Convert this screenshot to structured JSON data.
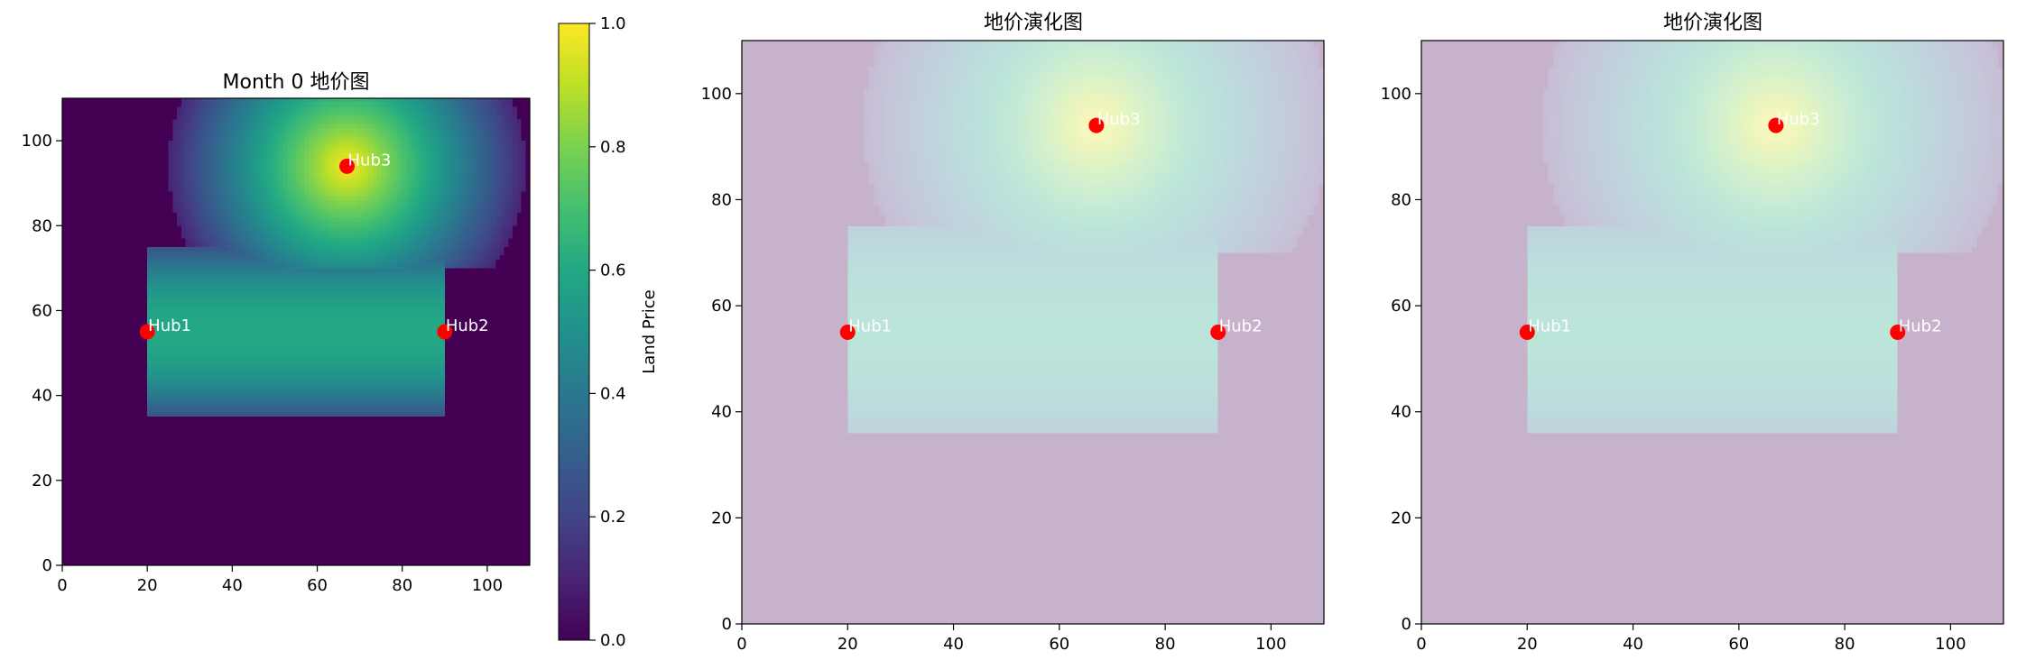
{
  "chart_data": [
    {
      "type": "heatmap",
      "title": "Month 0 地价图",
      "xlim": [
        0,
        110
      ],
      "ylim": [
        0,
        110
      ],
      "xticks": [
        0,
        20,
        40,
        60,
        80,
        100
      ],
      "yticks": [
        0,
        20,
        40,
        60,
        80,
        100
      ],
      "colormap": "viridis",
      "opacity": 1.0,
      "hubs": [
        {
          "name": "Hub1",
          "x": 20,
          "y": 55
        },
        {
          "name": "Hub2",
          "x": 90,
          "y": 55
        },
        {
          "name": "Hub3",
          "x": 67,
          "y": 94
        }
      ],
      "marker_color": "#ff0000",
      "colorbar": {
        "label": "Land Price",
        "range": [
          0.0,
          1.0
        ],
        "ticks": [
          "0.0",
          "0.2",
          "0.4",
          "0.6",
          "0.8",
          "1.0"
        ]
      },
      "field": {
        "background_value": 0.0,
        "band": {
          "x_range": [
            20,
            90
          ],
          "y_range": [
            35,
            75
          ],
          "peak_y": 55,
          "peak_value": 0.6,
          "edge_value": 0.25
        },
        "radial": {
          "center": [
            67,
            94
          ],
          "radius": 42,
          "min_y": 70,
          "peak_value": 1.0
        }
      }
    },
    {
      "type": "heatmap",
      "title": "地价演化图",
      "xlim": [
        0,
        110
      ],
      "ylim": [
        0,
        110
      ],
      "xticks": [
        0,
        20,
        40,
        60,
        80,
        100
      ],
      "yticks": [
        0,
        20,
        40,
        60,
        80,
        100
      ],
      "colormap": "viridis",
      "opacity": 0.3,
      "hubs": [
        {
          "name": "Hub1",
          "x": 20,
          "y": 55
        },
        {
          "name": "Hub2",
          "x": 90,
          "y": 55
        },
        {
          "name": "Hub3",
          "x": 67,
          "y": 94
        }
      ],
      "marker_color": "#ff0000",
      "field": {
        "background_value": 0.0,
        "band": {
          "x_range": [
            20,
            90
          ],
          "y_range": [
            36,
            75
          ],
          "peak_y": 55,
          "peak_value": 0.6,
          "edge_value": 0.35
        },
        "radial": {
          "center": [
            67,
            94
          ],
          "radius": 44,
          "min_y": 70,
          "peak_value": 1.0
        }
      }
    },
    {
      "type": "heatmap",
      "title": "地价演化图",
      "xlim": [
        0,
        110
      ],
      "ylim": [
        0,
        110
      ],
      "xticks": [
        0,
        20,
        40,
        60,
        80,
        100
      ],
      "yticks": [
        0,
        20,
        40,
        60,
        80,
        100
      ],
      "colormap": "viridis",
      "opacity": 0.3,
      "hubs": [
        {
          "name": "Hub1",
          "x": 20,
          "y": 55
        },
        {
          "name": "Hub2",
          "x": 90,
          "y": 55
        },
        {
          "name": "Hub3",
          "x": 67,
          "y": 94
        }
      ],
      "marker_color": "#ff0000",
      "field": {
        "background_value": 0.0,
        "band": {
          "x_range": [
            20,
            90
          ],
          "y_range": [
            36,
            75
          ],
          "peak_y": 55,
          "peak_value": 0.6,
          "edge_value": 0.35
        },
        "radial": {
          "center": [
            67,
            94
          ],
          "radius": 44,
          "min_y": 70,
          "peak_value": 1.0
        }
      }
    }
  ]
}
